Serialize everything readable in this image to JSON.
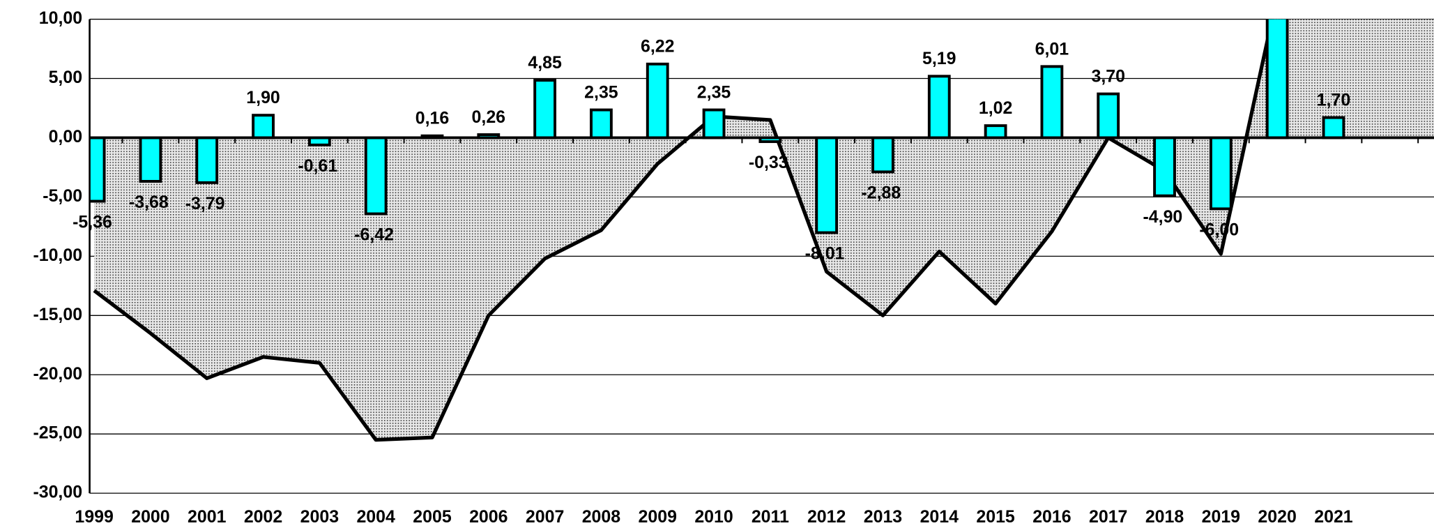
{
  "chart_data": {
    "type": "bar",
    "categories": [
      "1999",
      "2000",
      "2001",
      "2002",
      "2003",
      "2004",
      "2005",
      "2006",
      "2007",
      "2008",
      "2009",
      "2010",
      "2011",
      "2012",
      "2013",
      "2014",
      "2015",
      "2016",
      "2017",
      "2018",
      "2019",
      "2020",
      "2021",
      null
    ],
    "series": [
      {
        "type": "area",
        "color": "#000000",
        "values": [
          -12.9,
          -16.5,
          -20.3,
          -18.5,
          -19.0,
          -25.5,
          -25.3,
          -15.0,
          -10.2,
          -7.8,
          -2.2,
          1.8,
          1.5,
          -11.3,
          -15.0,
          -9.6,
          -14.0,
          -7.9,
          0.0,
          -2.8,
          -9.8,
          12,
          12,
          12
        ]
      },
      {
        "type": "bar",
        "color": "#00ffff",
        "values": [
          -5.36,
          -3.68,
          -3.79,
          1.9,
          -0.61,
          -6.42,
          0.16,
          0.26,
          4.85,
          2.35,
          6.22,
          2.35,
          -0.33,
          -8.01,
          -2.88,
          5.19,
          1.02,
          6.01,
          3.7,
          -4.9,
          -6.0,
          11,
          1.7,
          null
        ],
        "value_labels": [
          "-5,36",
          "-3,68",
          "-3,79",
          "1,90",
          "-0,61",
          "-6,42",
          "0,16",
          "0,26",
          "4,85",
          "2,35",
          "6,22",
          "2,35",
          "-0,33",
          "-8,01",
          "-2,88",
          "5,19",
          "1,02",
          "6,01",
          "3,70",
          "-4,90",
          "-6,00",
          null,
          "1,70",
          null
        ]
      }
    ],
    "ylim": [
      -30,
      10
    ],
    "yticks": [
      {
        "value": 10,
        "label": "10,00"
      },
      {
        "value": 5,
        "label": "5,00"
      },
      {
        "value": 0,
        "label": "0,00"
      },
      {
        "value": -5,
        "label": "-5,00"
      },
      {
        "value": -10,
        "label": "-10,00"
      },
      {
        "value": -15,
        "label": "-15,00"
      },
      {
        "value": -20,
        "label": "-20,00"
      },
      {
        "value": -25,
        "label": "-25,00"
      },
      {
        "value": -30,
        "label": "-30,00"
      }
    ],
    "grid": true
  }
}
